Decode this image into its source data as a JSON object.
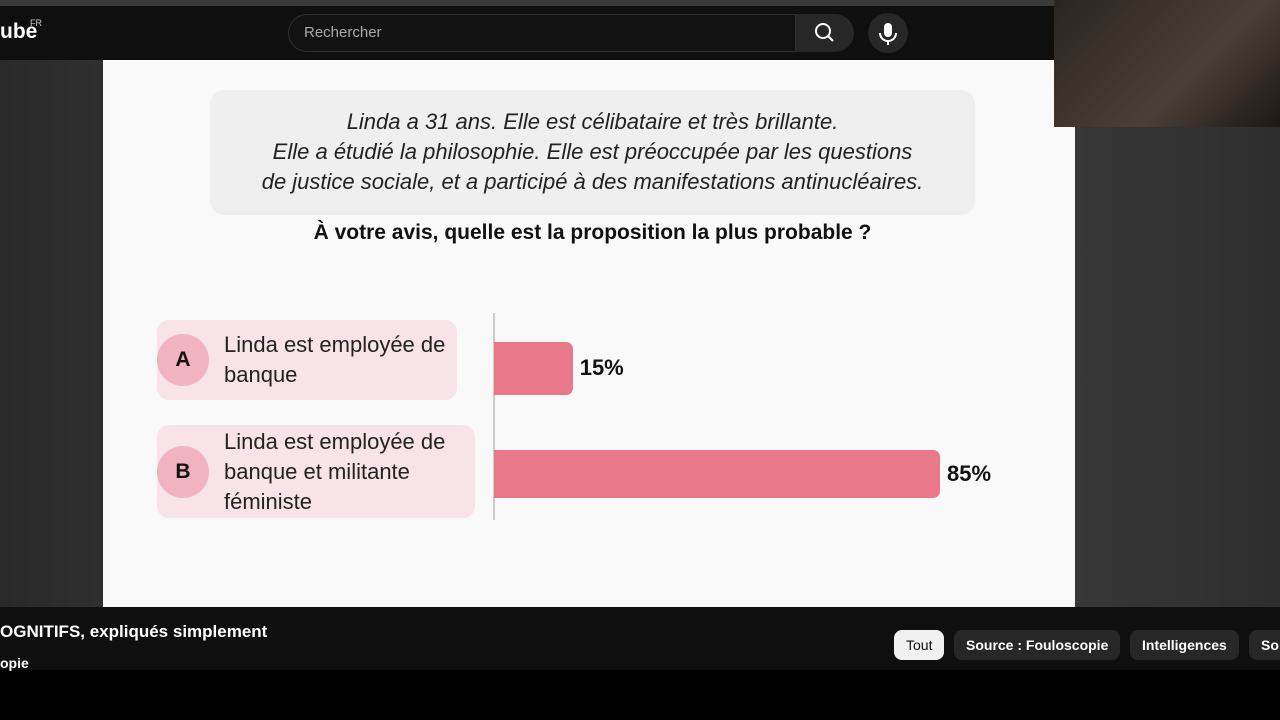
{
  "header": {
    "logo": "ube",
    "region": "FR",
    "search_placeholder": "Rechercher"
  },
  "chart_data": {
    "type": "bar",
    "orientation": "horizontal",
    "intro_lines": [
      "Linda a 31 ans. Elle est célibataire et très brillante.",
      "Elle a étudié la philosophie. Elle est préoccupée par les questions",
      "de justice sociale, et a participé à des manifestations antinucléaires."
    ],
    "title": "À votre avis, quelle est la proposition la plus probable ?",
    "option_letters": [
      "A",
      "B"
    ],
    "categories": [
      "Linda est employée de banque",
      "Linda est employée de banque et militante féministe"
    ],
    "values": [
      15,
      85
    ],
    "value_labels": [
      "15%",
      "85%"
    ],
    "color": "#e8788a"
  },
  "video": {
    "title": "OGNITIFS, expliqués simplement",
    "channel": "opie"
  },
  "chips": [
    "Tout",
    "Source : Fouloscopie",
    "Intelligences",
    "So"
  ]
}
